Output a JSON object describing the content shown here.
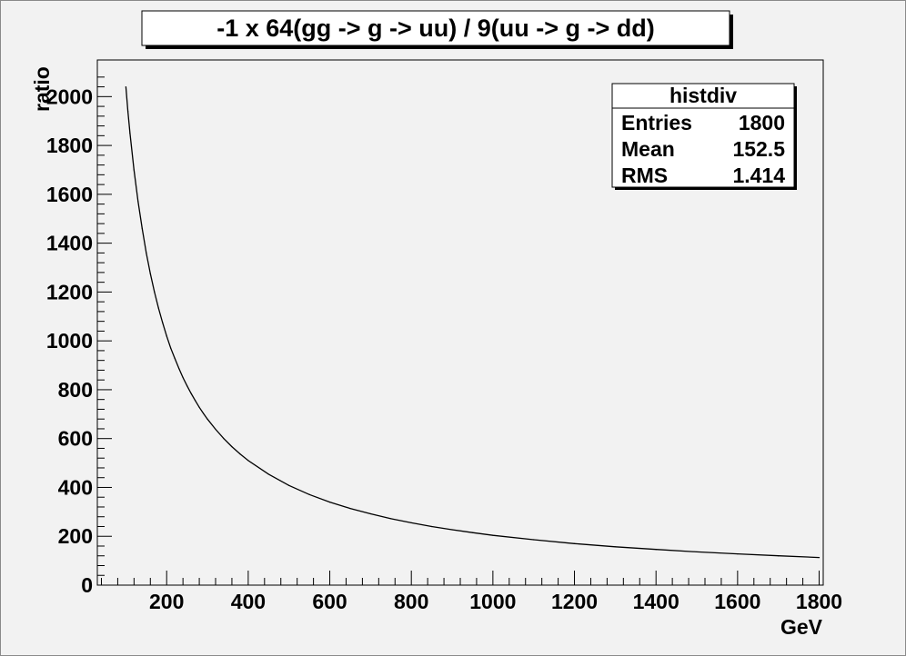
{
  "chart_data": {
    "type": "line",
    "title": "-1 x 64(gg -> g -> uu) / 9(uu -> g -> dd)",
    "xlabel": "GeV",
    "ylabel": "ratio",
    "xlim": [
      30,
      1810
    ],
    "ylim": [
      0,
      2150
    ],
    "x_ticks": [
      200,
      400,
      600,
      800,
      1000,
      1200,
      1400,
      1600,
      1800
    ],
    "y_ticks": [
      0,
      200,
      400,
      600,
      800,
      1000,
      1200,
      1400,
      1600,
      1800,
      2000
    ],
    "grid": false,
    "series": [
      {
        "x": [
          100,
          105,
          110,
          120,
          130,
          140,
          150,
          160,
          170,
          180,
          190,
          200,
          210,
          220,
          230,
          240,
          250,
          260,
          270,
          280,
          290,
          300,
          320,
          340,
          360,
          380,
          400,
          450,
          500,
          550,
          600,
          650,
          700,
          750,
          800,
          850,
          900,
          950,
          1000,
          1100,
          1200,
          1300,
          1400,
          1500,
          1600,
          1700,
          1800
        ],
        "values": [
          2040,
          1940,
          1850,
          1700,
          1570,
          1460,
          1360,
          1275,
          1200,
          1135,
          1075,
          1020,
          970,
          928,
          887,
          850,
          816,
          785,
          756,
          728,
          703,
          680,
          638,
          600,
          567,
          537,
          510,
          454,
          408,
          371,
          340,
          314,
          292,
          272,
          255,
          240,
          227,
          215,
          204,
          186,
          170,
          157,
          146,
          136,
          128,
          120,
          113
        ]
      }
    ]
  },
  "stats_box": {
    "title": "histdiv",
    "rows": [
      {
        "label": "Entries",
        "value": "1800"
      },
      {
        "label": "Mean",
        "value": "152.5"
      },
      {
        "label": "RMS",
        "value": "1.414"
      }
    ]
  },
  "colors": {
    "background": "#f2f2f2",
    "frame": "#000000",
    "line": "#000000",
    "box_fill": "#ffffff"
  }
}
